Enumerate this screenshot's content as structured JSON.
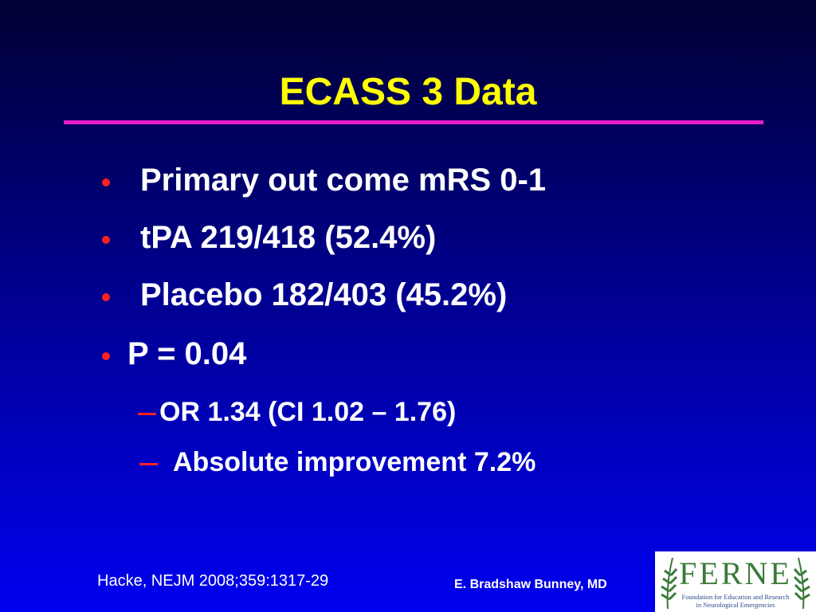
{
  "slide": {
    "title": "ECASS 3 Data",
    "bullets": [
      "Primary out come mRS 0-1",
      "tPA 219/418 (52.4%)",
      "Placebo 182/403 (45.2%)",
      "P = 0.04"
    ],
    "sub_bullets": [
      "OR 1.34 (CI 1.02 – 1.76)",
      "Absolute improvement 7.2%"
    ],
    "citation": "Hacke, NEJM 2008;359:1317-29",
    "author": "E. Bradshaw Bunney, MD",
    "logo": {
      "name": "FERNE",
      "subtitle": [
        "Foundation for Education and Research",
        "in Neurological Emergencies"
      ]
    }
  }
}
